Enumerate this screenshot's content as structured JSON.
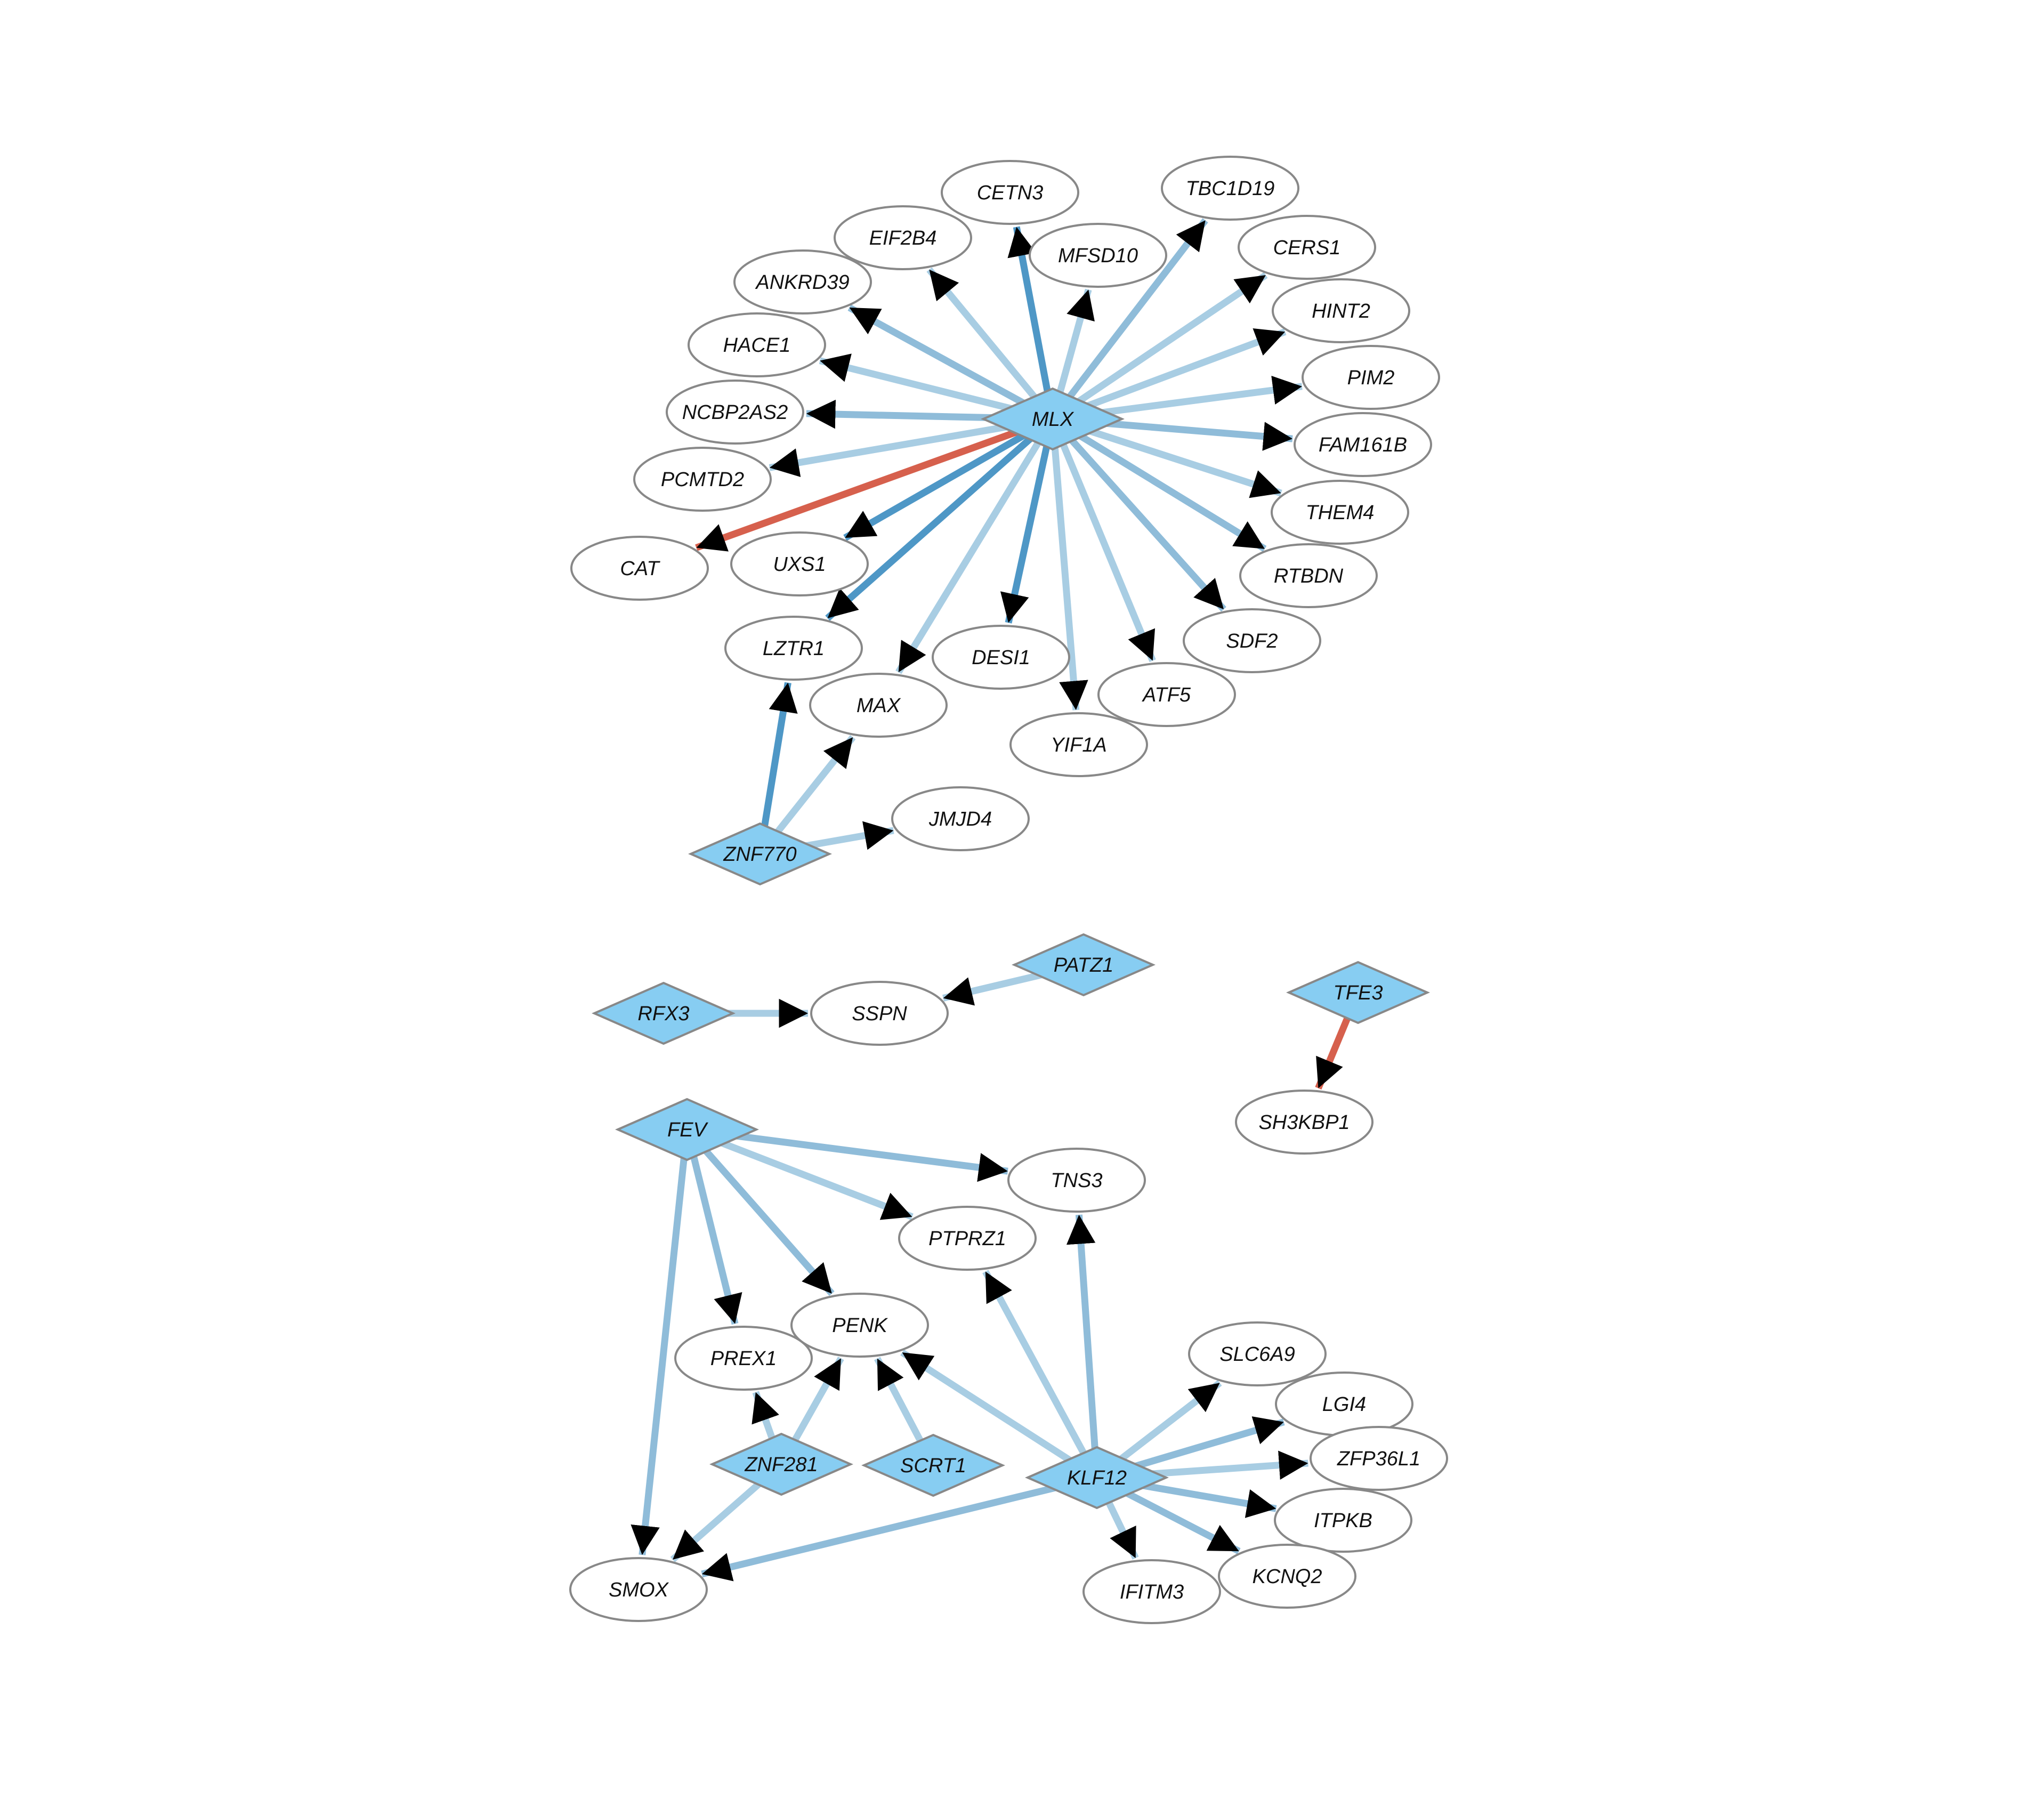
{
  "network": {
    "colors": {
      "tf_fill": "#87cdf2",
      "target_fill": "#ffffff",
      "node_stroke": "#888888",
      "arrowhead": "#000000",
      "edge_light": "#a8cde3",
      "edge_mid": "#8fbcd9",
      "edge_dark": "#4e97c6",
      "edge_negative": "#d6604d"
    },
    "transcription_factors": [
      "MLX",
      "ZNF770",
      "PATZ1",
      "RFX3",
      "TFE3",
      "FEV",
      "ZNF281",
      "SCRT1",
      "KLF12"
    ],
    "targets": [
      "CETN3",
      "TBC1D19",
      "EIF2B4",
      "MFSD10",
      "CERS1",
      "ANKRD39",
      "HINT2",
      "HACE1",
      "PIM2",
      "NCBP2AS2",
      "FAM161B",
      "PCMTD2",
      "THEM4",
      "CAT",
      "UXS1",
      "RTBDN",
      "LZTR1",
      "DESI1",
      "SDF2",
      "MAX",
      "ATF5",
      "YIF1A",
      "JMJD4",
      "SSPN",
      "SH3KBP1",
      "TNS3",
      "PTPRZ1",
      "PENK",
      "PREX1",
      "SLC6A9",
      "LGI4",
      "ZFP36L1",
      "ITPKB",
      "SMOX",
      "KCNQ2",
      "IFITM3"
    ],
    "edges": [
      {
        "source": "MLX",
        "target": "CETN3",
        "tone": "dark"
      },
      {
        "source": "MLX",
        "target": "TBC1D19",
        "tone": "mid"
      },
      {
        "source": "MLX",
        "target": "EIF2B4",
        "tone": "light"
      },
      {
        "source": "MLX",
        "target": "MFSD10",
        "tone": "light"
      },
      {
        "source": "MLX",
        "target": "CERS1",
        "tone": "light"
      },
      {
        "source": "MLX",
        "target": "ANKRD39",
        "tone": "mid"
      },
      {
        "source": "MLX",
        "target": "HINT2",
        "tone": "light"
      },
      {
        "source": "MLX",
        "target": "HACE1",
        "tone": "light"
      },
      {
        "source": "MLX",
        "target": "PIM2",
        "tone": "light"
      },
      {
        "source": "MLX",
        "target": "NCBP2AS2",
        "tone": "mid"
      },
      {
        "source": "MLX",
        "target": "FAM161B",
        "tone": "mid"
      },
      {
        "source": "MLX",
        "target": "PCMTD2",
        "tone": "light"
      },
      {
        "source": "MLX",
        "target": "THEM4",
        "tone": "light"
      },
      {
        "source": "MLX",
        "target": "CAT",
        "tone": "negative"
      },
      {
        "source": "MLX",
        "target": "UXS1",
        "tone": "dark"
      },
      {
        "source": "MLX",
        "target": "RTBDN",
        "tone": "mid"
      },
      {
        "source": "MLX",
        "target": "LZTR1",
        "tone": "dark"
      },
      {
        "source": "MLX",
        "target": "DESI1",
        "tone": "dark"
      },
      {
        "source": "MLX",
        "target": "SDF2",
        "tone": "mid"
      },
      {
        "source": "MLX",
        "target": "MAX",
        "tone": "light"
      },
      {
        "source": "MLX",
        "target": "ATF5",
        "tone": "light"
      },
      {
        "source": "MLX",
        "target": "YIF1A",
        "tone": "light"
      },
      {
        "source": "ZNF770",
        "target": "LZTR1",
        "tone": "dark"
      },
      {
        "source": "ZNF770",
        "target": "MAX",
        "tone": "light"
      },
      {
        "source": "ZNF770",
        "target": "JMJD4",
        "tone": "light"
      },
      {
        "source": "PATZ1",
        "target": "SSPN",
        "tone": "light"
      },
      {
        "source": "RFX3",
        "target": "SSPN",
        "tone": "light"
      },
      {
        "source": "TFE3",
        "target": "SH3KBP1",
        "tone": "negative"
      },
      {
        "source": "FEV",
        "target": "TNS3",
        "tone": "mid"
      },
      {
        "source": "FEV",
        "target": "PTPRZ1",
        "tone": "light"
      },
      {
        "source": "FEV",
        "target": "PENK",
        "tone": "mid"
      },
      {
        "source": "FEV",
        "target": "PREX1",
        "tone": "mid"
      },
      {
        "source": "FEV",
        "target": "SMOX",
        "tone": "mid"
      },
      {
        "source": "ZNF281",
        "target": "PREX1",
        "tone": "light"
      },
      {
        "source": "ZNF281",
        "target": "PENK",
        "tone": "light"
      },
      {
        "source": "ZNF281",
        "target": "SMOX",
        "tone": "light"
      },
      {
        "source": "SCRT1",
        "target": "PENK",
        "tone": "light"
      },
      {
        "source": "KLF12",
        "target": "PENK",
        "tone": "light"
      },
      {
        "source": "KLF12",
        "target": "PTPRZ1",
        "tone": "light"
      },
      {
        "source": "KLF12",
        "target": "TNS3",
        "tone": "mid"
      },
      {
        "source": "KLF12",
        "target": "SLC6A9",
        "tone": "light"
      },
      {
        "source": "KLF12",
        "target": "LGI4",
        "tone": "mid"
      },
      {
        "source": "KLF12",
        "target": "ZFP36L1",
        "tone": "light"
      },
      {
        "source": "KLF12",
        "target": "ITPKB",
        "tone": "mid"
      },
      {
        "source": "KLF12",
        "target": "KCNQ2",
        "tone": "mid"
      },
      {
        "source": "KLF12",
        "target": "IFITM3",
        "tone": "light"
      },
      {
        "source": "KLF12",
        "target": "SMOX",
        "tone": "mid"
      }
    ]
  }
}
